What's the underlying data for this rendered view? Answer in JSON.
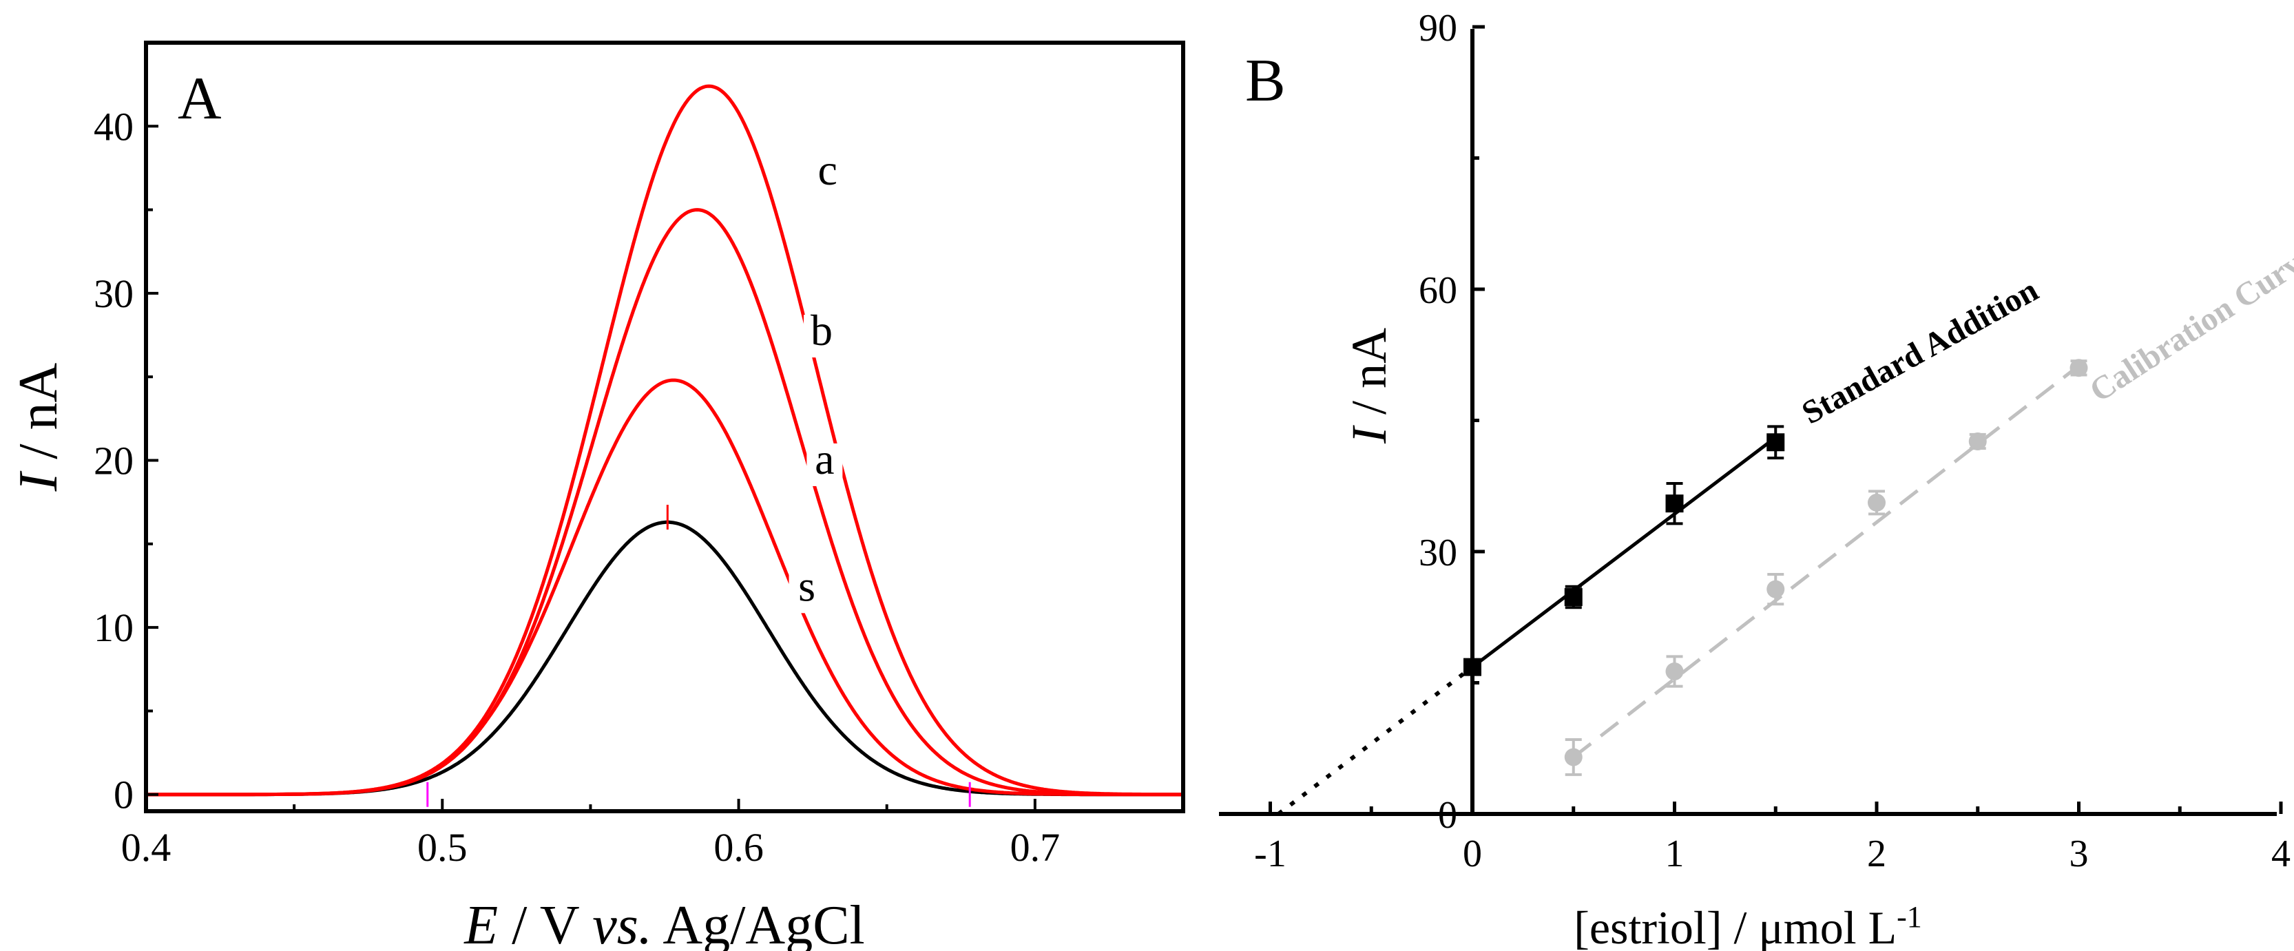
{
  "chart_data": [
    {
      "panel_label": "A",
      "type": "line",
      "xlabel": {
        "italic": "E",
        "rest_a": " / V ",
        "italic2": "vs.",
        "rest_b": " Ag/AgCl"
      },
      "ylabel": {
        "italic": "I",
        "rest": " / nA"
      },
      "xlim": [
        0.4,
        0.75
      ],
      "ylim": [
        -1,
        45
      ],
      "x_ticks": [
        0.4,
        0.5,
        0.6,
        0.7
      ],
      "x_tick_labels": [
        "0.4",
        "0.5",
        "0.6",
        "0.7"
      ],
      "y_ticks": [
        0,
        10,
        20,
        30,
        40
      ],
      "y_tick_labels": [
        "0",
        "10",
        "20",
        "30",
        "40"
      ],
      "series": [
        {
          "name": "s",
          "color": "#000000",
          "peak_x": 0.576,
          "peak_y": 16.3,
          "sigma": 0.034,
          "label_x": 0.623,
          "label_y": 11.6
        },
        {
          "name": "a",
          "color": "#ff0000",
          "peak_x": 0.578,
          "peak_y": 24.8,
          "sigma": 0.034,
          "label_x": 0.629,
          "label_y": 19.2
        },
        {
          "name": "b",
          "color": "#ff0000",
          "peak_x": 0.586,
          "peak_y": 35.0,
          "sigma": 0.035,
          "label_x": 0.628,
          "label_y": 26.9
        },
        {
          "name": "c",
          "color": "#ff0000",
          "peak_x": 0.59,
          "peak_y": 42.4,
          "sigma": 0.036,
          "label_x": 0.63,
          "label_y": 36.5
        }
      ],
      "markers": [
        {
          "x": 0.495,
          "y": 0,
          "color": "#ff00ff"
        },
        {
          "x": 0.678,
          "y": 0,
          "color": "#ff00ff"
        },
        {
          "x": 0.576,
          "y": 16.6,
          "color": "#ff0000"
        }
      ]
    },
    {
      "panel_label": "B",
      "type": "scatter",
      "xlabel": "[estriol] / μmol L",
      "xlabel_sup": "-1",
      "ylabel": {
        "italic": "I",
        "rest": " / nA"
      },
      "xlim": [
        -1.3,
        4.0
      ],
      "ylim": [
        0,
        90
      ],
      "x_ticks": [
        -1,
        0,
        1,
        2,
        3,
        4
      ],
      "x_tick_labels": [
        "-1",
        "0",
        "1",
        "2",
        "3",
        "4"
      ],
      "y_ticks": [
        0,
        30,
        60,
        90
      ],
      "y_tick_labels": [
        "0",
        "30",
        "60",
        "90"
      ],
      "series": [
        {
          "name": "Standard Addition",
          "color": "#000000",
          "marker": "square",
          "x": [
            0,
            0.5,
            1,
            1.5
          ],
          "y": [
            16.8,
            24.8,
            35.5,
            42.5
          ],
          "err": [
            0.8,
            1.2,
            2.3,
            1.8
          ],
          "fit": {
            "x_start": 0,
            "x_end": 1.5,
            "slope": 17.5,
            "intercept": 16.8
          },
          "extrapolation": {
            "x_start": -0.96,
            "x_end": 0
          },
          "label_x": 1.67,
          "label_y": 44.5,
          "label_angle": -29
        },
        {
          "name": "Calibration Curve",
          "color": "#c0c0c0",
          "marker": "circle",
          "x": [
            0.5,
            1,
            1.5,
            2,
            2.5,
            3
          ],
          "y": [
            6.5,
            16.3,
            25.7,
            35.6,
            42.6,
            51.0
          ],
          "err": [
            2.0,
            1.7,
            1.7,
            1.3,
            0.8,
            0.8
          ],
          "fit": {
            "x_start": 0.5,
            "x_end": 3.0,
            "slope": 17.9,
            "intercept": -2.45
          },
          "label_x": 3.1,
          "label_y": 47.0,
          "label_angle": -33
        }
      ]
    }
  ]
}
